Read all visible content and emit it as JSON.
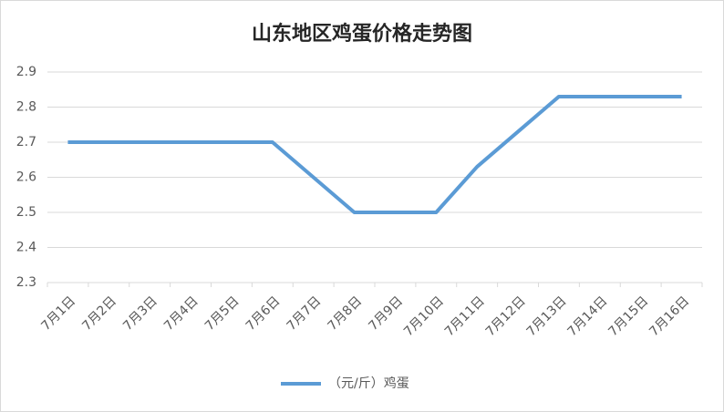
{
  "chart_data": {
    "type": "line",
    "title": "山东地区鸡蛋价格走势图",
    "categories": [
      "7月1日",
      "7月2日",
      "7月3日",
      "7月4日",
      "7月5日",
      "7月6日",
      "7月7日",
      "7月8日",
      "7月9日",
      "7月10日",
      "7月11日",
      "7月12日",
      "7月13日",
      "7月14日",
      "7月15日",
      "7月16日"
    ],
    "series": [
      {
        "name": "（元/斤）鸡蛋",
        "color": "#5b9bd5",
        "values": [
          2.7,
          2.7,
          2.7,
          2.7,
          2.7,
          2.7,
          2.6,
          2.5,
          2.5,
          2.5,
          2.63,
          2.73,
          2.83,
          2.83,
          2.83,
          2.83
        ]
      }
    ],
    "ylim": [
      2.3,
      2.9
    ],
    "yticks": [
      {
        "value": 2.3,
        "label": "2.3"
      },
      {
        "value": 2.4,
        "label": "2.4"
      },
      {
        "value": 2.5,
        "label": "2.5"
      },
      {
        "value": 2.6,
        "label": "2.6"
      },
      {
        "value": 2.7,
        "label": "2.7"
      },
      {
        "value": 2.8,
        "label": "2.8"
      },
      {
        "value": 2.9,
        "label": "2.9"
      }
    ],
    "grid": true,
    "legend": "bottom"
  }
}
